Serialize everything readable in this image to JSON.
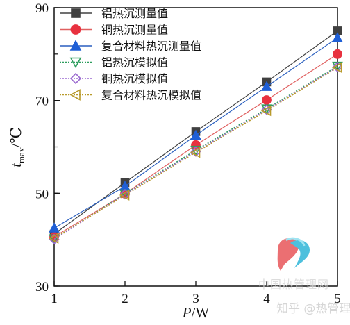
{
  "chart_data": {
    "type": "line",
    "x": [
      1,
      2,
      3,
      4,
      5
    ],
    "xlim": [
      1,
      5
    ],
    "ylim": [
      30,
      90
    ],
    "xticks": [
      "1",
      "2",
      "3",
      "4",
      "5"
    ],
    "yticks": [
      "30",
      "50",
      "70",
      "90"
    ],
    "xlabel": {
      "var": "P",
      "unit": "/W"
    },
    "ylabel": {
      "var": "t",
      "sub": "max",
      "unit": "/℃"
    },
    "legend_position": "top-left",
    "grid": false,
    "series": [
      {
        "name": "铝热沉测量值",
        "marker": "square",
        "filled": true,
        "line": "solid",
        "color": "#404040",
        "line_color": "#404040",
        "values": [
          41.2,
          52.3,
          63.3,
          74.0,
          85.0
        ]
      },
      {
        "name": "铜热沉测量值",
        "marker": "circle",
        "filled": true,
        "line": "solid",
        "color": "#e8313f",
        "line_color": "#e06060",
        "values": [
          40.6,
          49.9,
          60.4,
          70.1,
          80.0
        ]
      },
      {
        "name": "复合材料热沉测量值",
        "marker": "triangle-up",
        "filled": true,
        "line": "solid",
        "color": "#1f5fd6",
        "line_color": "#2a5fbf",
        "values": [
          42.5,
          51.5,
          62.5,
          73.0,
          83.5
        ]
      },
      {
        "name": "铝热沉模拟值",
        "marker": "triangle-down",
        "filled": false,
        "line": "dotted",
        "color": "#2e9e5e",
        "line_color": "#2e9e5e",
        "values": [
          40.2,
          49.9,
          59.3,
          68.2,
          77.4
        ]
      },
      {
        "name": "铜热沉模拟值",
        "marker": "diamond",
        "filled": false,
        "line": "dotted",
        "color": "#9b6ad0",
        "line_color": "#9b6ad0",
        "values": [
          40.1,
          49.8,
          59.0,
          68.0,
          77.2
        ]
      },
      {
        "name": "复合材料热沉模拟值",
        "marker": "triangle-left",
        "filled": false,
        "line": "dotted",
        "color": "#b89a2a",
        "line_color": "#b89a2a",
        "values": [
          40.3,
          49.6,
          58.8,
          67.8,
          77.1
        ]
      }
    ]
  },
  "watermark": {
    "line1": "中国热管理网",
    "line2": "知乎 @热管理"
  }
}
